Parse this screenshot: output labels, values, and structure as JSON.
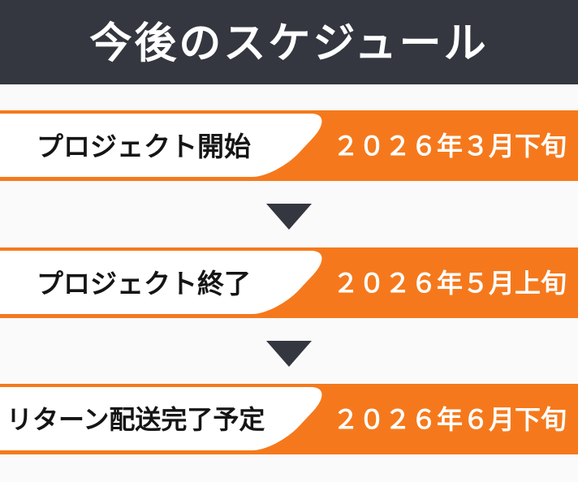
{
  "header": {
    "title": "今後のスケジュール"
  },
  "schedule": {
    "items": [
      {
        "label": "プロジェクト開始",
        "date": "２０２６年３月下旬"
      },
      {
        "label": "プロジェクト終了",
        "date": "２０２６年５月上旬"
      },
      {
        "label": "リターン配送完了予定",
        "date": "２０２６年６月下旬"
      }
    ]
  },
  "colors": {
    "header_bg": "#34373F",
    "accent_orange": "#F5791C",
    "arrow": "#34373F",
    "label_text": "#151515",
    "date_text": "#FFFFFF",
    "panel_white": "#FFFFFF",
    "background": "#FAFAFB"
  }
}
